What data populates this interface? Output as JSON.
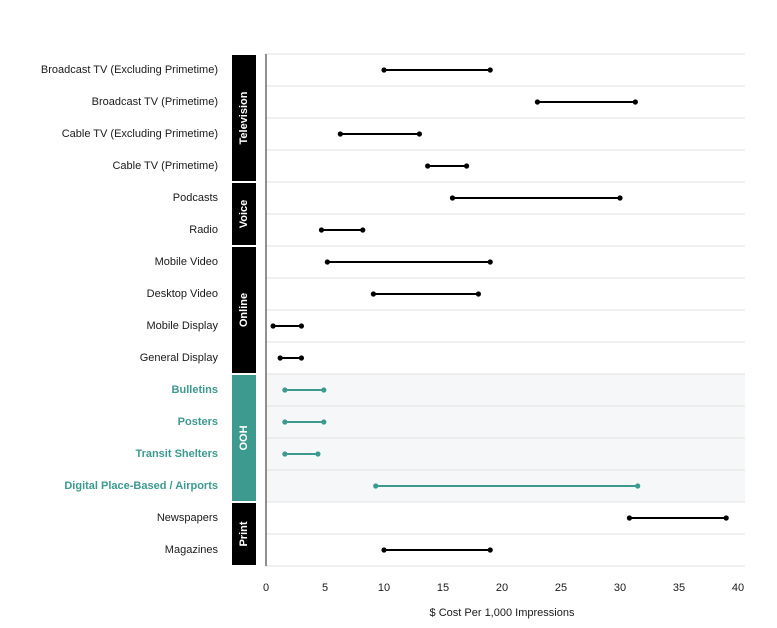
{
  "chart_data": {
    "type": "dumbbell",
    "xlabel": "$ Cost Per 1,000 Impressions",
    "ylabel": "",
    "xlim": [
      0,
      40
    ],
    "xticks": [
      0,
      5,
      10,
      15,
      20,
      25,
      30,
      35,
      40
    ],
    "colors": {
      "default": "#000000",
      "highlight": "#3c9a8f",
      "highlight_band": "#f5f7f8",
      "group_band": "#000000",
      "highlight_group_band": "#3c9a8f",
      "grid": "#e2e2e2"
    },
    "groups": [
      {
        "name": "Television",
        "highlight": false,
        "rows": [
          {
            "label": "Broadcast TV (Excluding Primetime)",
            "min": 10,
            "max": 19
          },
          {
            "label": "Broadcast TV (Primetime)",
            "min": 23,
            "max": 31.3
          },
          {
            "label": "Cable TV (Excluding Primetime)",
            "min": 6.3,
            "max": 13
          },
          {
            "label": "Cable TV (Primetime)",
            "min": 13.7,
            "max": 17
          }
        ]
      },
      {
        "name": "Voice",
        "highlight": false,
        "rows": [
          {
            "label": "Podcasts",
            "min": 15.8,
            "max": 30
          },
          {
            "label": "Radio",
            "min": 4.7,
            "max": 8.2
          }
        ]
      },
      {
        "name": "Online",
        "highlight": false,
        "rows": [
          {
            "label": "Mobile Video",
            "min": 5.2,
            "max": 19
          },
          {
            "label": "Desktop Video",
            "min": 9.1,
            "max": 18
          },
          {
            "label": "Mobile Display",
            "min": 0.6,
            "max": 3
          },
          {
            "label": "General Display",
            "min": 1.2,
            "max": 3
          }
        ]
      },
      {
        "name": "OOH",
        "highlight": true,
        "rows": [
          {
            "label": "Bulletins",
            "min": 1.6,
            "max": 4.9
          },
          {
            "label": "Posters",
            "min": 1.6,
            "max": 4.9
          },
          {
            "label": "Transit Shelters",
            "min": 1.6,
            "max": 4.4
          },
          {
            "label": "Digital Place-Based / Airports",
            "min": 9.3,
            "max": 31.5
          }
        ]
      },
      {
        "name": "Print",
        "highlight": false,
        "rows": [
          {
            "label": "Newspapers",
            "min": 30.8,
            "max": 39
          },
          {
            "label": "Magazines",
            "min": 10,
            "max": 19
          }
        ]
      }
    ]
  }
}
